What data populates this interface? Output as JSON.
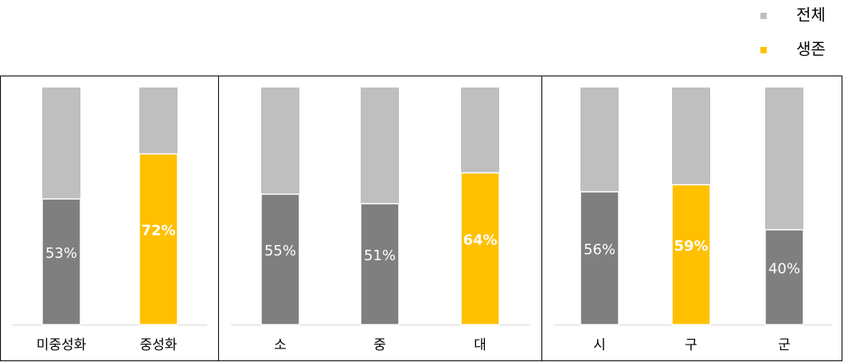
{
  "chart_data": [
    {
      "type": "bar",
      "categories": [
        "미중성화",
        "중성화"
      ],
      "ylim": [
        0,
        100
      ],
      "series": [
        {
          "name": "전체",
          "color": "#bfbfbf",
          "values": [
            100,
            100
          ]
        },
        {
          "name": "생존",
          "color": "#ffc000",
          "point_colors": [
            "#7f7f7f",
            "#ffc000"
          ],
          "values": [
            53,
            72
          ],
          "value_labels": [
            "53%",
            "72%"
          ]
        }
      ]
    },
    {
      "type": "bar",
      "categories": [
        "소",
        "중",
        "대"
      ],
      "ylim": [
        0,
        100
      ],
      "series": [
        {
          "name": "전체",
          "color": "#bfbfbf",
          "values": [
            100,
            100,
            100
          ]
        },
        {
          "name": "생존",
          "color": "#ffc000",
          "point_colors": [
            "#7f7f7f",
            "#7f7f7f",
            "#ffc000"
          ],
          "values": [
            55,
            51,
            64
          ],
          "value_labels": [
            "55%",
            "51%",
            "64%"
          ]
        }
      ]
    },
    {
      "type": "bar",
      "categories": [
        "시",
        "구",
        "군"
      ],
      "ylim": [
        0,
        100
      ],
      "series": [
        {
          "name": "전체",
          "color": "#bfbfbf",
          "values": [
            100,
            100,
            100
          ]
        },
        {
          "name": "생존",
          "color": "#ffc000",
          "point_colors": [
            "#7f7f7f",
            "#ffc000",
            "#7f7f7f"
          ],
          "values": [
            56,
            59,
            40
          ],
          "value_labels": [
            "56%",
            "59%",
            "40%"
          ]
        }
      ]
    }
  ]
}
